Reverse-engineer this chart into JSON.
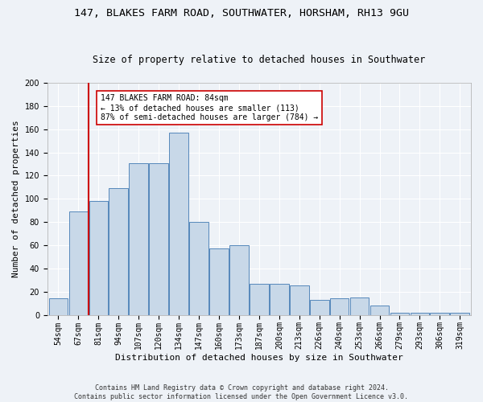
{
  "title": "147, BLAKES FARM ROAD, SOUTHWATER, HORSHAM, RH13 9GU",
  "subtitle": "Size of property relative to detached houses in Southwater",
  "xlabel": "Distribution of detached houses by size in Southwater",
  "ylabel": "Number of detached properties",
  "categories": [
    "54sqm",
    "67sqm",
    "81sqm",
    "94sqm",
    "107sqm",
    "120sqm",
    "134sqm",
    "147sqm",
    "160sqm",
    "173sqm",
    "187sqm",
    "200sqm",
    "213sqm",
    "226sqm",
    "240sqm",
    "253sqm",
    "266sqm",
    "279sqm",
    "293sqm",
    "306sqm",
    "319sqm"
  ],
  "values": [
    14,
    89,
    98,
    109,
    131,
    131,
    157,
    80,
    57,
    60,
    27,
    27,
    25,
    13,
    14,
    15,
    8,
    2,
    2,
    2,
    2
  ],
  "bar_color": "#c8d8e8",
  "bar_edge_color": "#5588bb",
  "vline_color": "#cc0000",
  "annotation_text": "147 BLAKES FARM ROAD: 84sqm\n← 13% of detached houses are smaller (113)\n87% of semi-detached houses are larger (784) →",
  "annotation_box_color": "#ffffff",
  "annotation_box_edge": "#cc0000",
  "ylim": [
    0,
    200
  ],
  "yticks": [
    0,
    20,
    40,
    60,
    80,
    100,
    120,
    140,
    160,
    180,
    200
  ],
  "footer": "Contains HM Land Registry data © Crown copyright and database right 2024.\nContains public sector information licensed under the Open Government Licence v3.0.",
  "background_color": "#eef2f7",
  "grid_color": "#ffffff",
  "title_fontsize": 9.5,
  "subtitle_fontsize": 8.5,
  "tick_fontsize": 7,
  "ylabel_fontsize": 8,
  "xlabel_fontsize": 8,
  "footer_fontsize": 6,
  "annot_fontsize": 7
}
